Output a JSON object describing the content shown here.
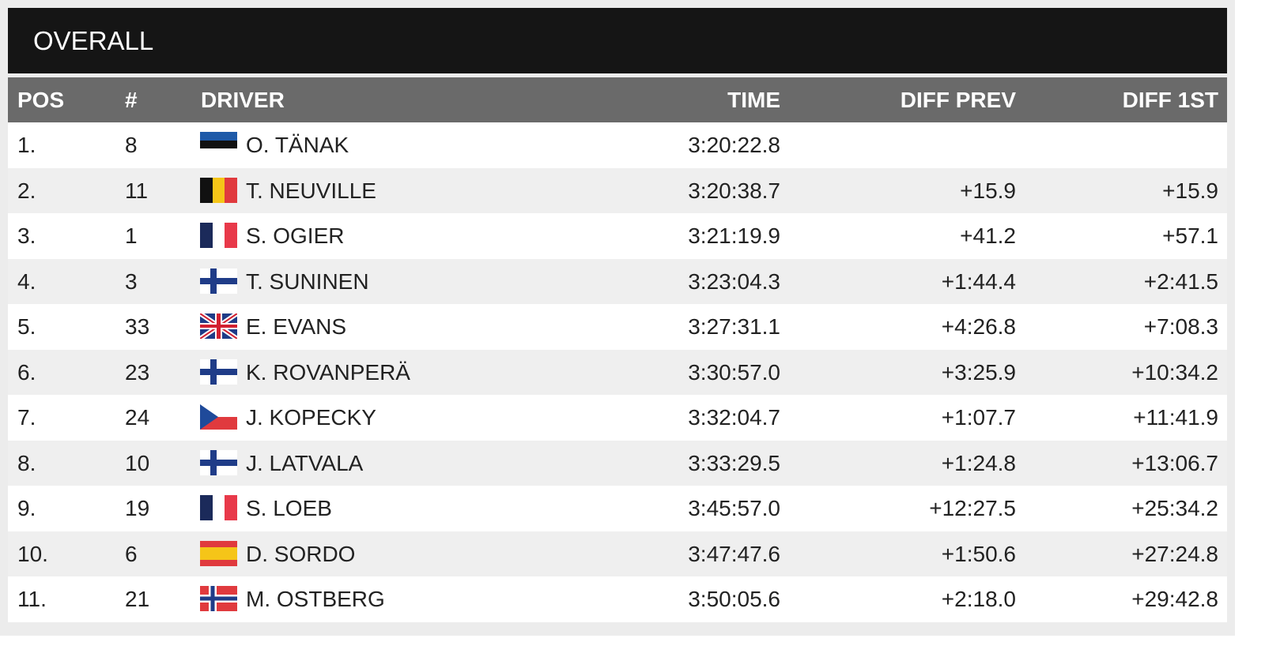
{
  "title": "OVERALL",
  "table": {
    "header": {
      "pos": "POS",
      "number": "#",
      "driver": "DRIVER",
      "time": "TIME",
      "diff_prev": "DIFF PREV",
      "diff_first": "DIFF 1ST"
    },
    "rows": [
      {
        "pos": "1.",
        "number": "8",
        "driver": "O. TÄNAK",
        "time": "3:20:22.8"
      },
      {
        "pos": "2.",
        "number": "11",
        "driver": "T. NEUVILLE",
        "time": "3:20:38.7",
        "diff_prev": "+15.9",
        "diff_first": "+15.9"
      },
      {
        "pos": "3.",
        "number": "1",
        "driver": "S. OGIER",
        "time": "3:21:19.9",
        "diff_prev": "+41.2",
        "diff_first": "+57.1"
      },
      {
        "pos": "4.",
        "number": "3",
        "driver": "T. SUNINEN",
        "time": "3:23:04.3",
        "diff_prev": "+1:44.4",
        "diff_first": "+2:41.5"
      },
      {
        "pos": "5.",
        "number": "33",
        "driver": "E. EVANS",
        "time": "3:27:31.1",
        "diff_prev": "+4:26.8",
        "diff_first": "+7:08.3"
      },
      {
        "pos": "6.",
        "number": "23",
        "driver": "K. ROVANPERÄ",
        "time": "3:30:57.0",
        "diff_prev": "+3:25.9",
        "diff_first": "+10:34.2"
      },
      {
        "pos": "7.",
        "number": "24",
        "driver": "J. KOPECKY",
        "time": "3:32:04.7",
        "diff_prev": "+1:07.7",
        "diff_first": "+11:41.9"
      },
      {
        "pos": "8.",
        "number": "10",
        "driver": "J. LATVALA",
        "time": "3:33:29.5",
        "diff_prev": "+1:24.8",
        "diff_first": "+13:06.7"
      },
      {
        "pos": "9.",
        "number": "19",
        "driver": "S. LOEB",
        "time": "3:45:57.0",
        "diff_prev": "+12:27.5",
        "diff_first": "+25:34.2"
      },
      {
        "pos": "10.",
        "number": "6",
        "driver": "D. SORDO",
        "time": "3:47:47.6",
        "diff_prev": "+1:50.6",
        "diff_first": "+27:24.8"
      },
      {
        "pos": "11.",
        "number": "21",
        "driver": "M. OSTBERG",
        "time": "3:50:05.6",
        "diff_prev": "+2:18.0",
        "diff_first": "+29:42.8"
      }
    ]
  }
}
